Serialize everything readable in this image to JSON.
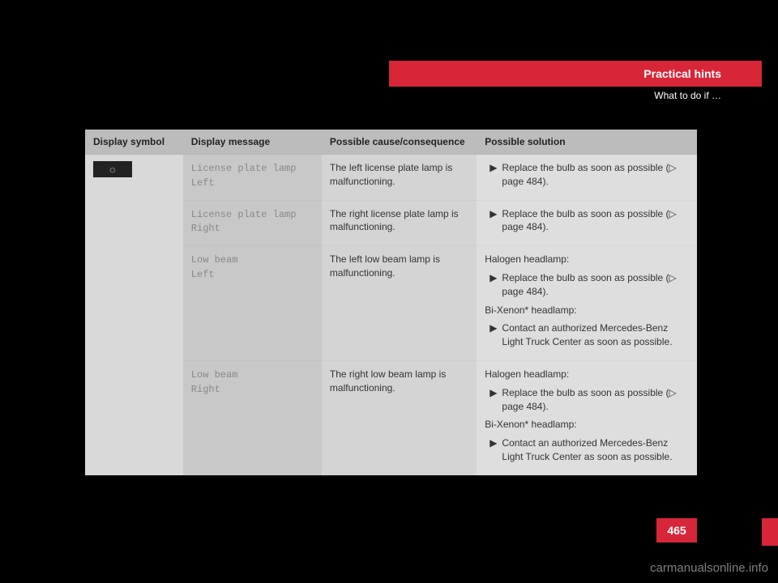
{
  "header": {
    "title": "Practical hints",
    "subtitle": "What to do if …"
  },
  "table": {
    "columns": [
      "Display symbol",
      "Display message",
      "Possible cause/consequence",
      "Possible solution"
    ],
    "symbol_glyph": "☼",
    "rows": [
      {
        "msg_l1": "License plate lamp",
        "msg_l2": "Left",
        "cause": "The left license plate lamp is malfunctioning.",
        "sol": [
          {
            "type": "bullet",
            "text": "Replace the bulb as soon as possible (▷ page 484)."
          }
        ]
      },
      {
        "msg_l1": "License plate lamp",
        "msg_l2": "Right",
        "cause": "The right license plate lamp is malfunctioning.",
        "sol": [
          {
            "type": "bullet",
            "text": "Replace the bulb as soon as possible (▷ page 484)."
          }
        ]
      },
      {
        "msg_l1": "Low beam",
        "msg_l2": "Left",
        "cause": "The left low beam lamp is malfunctioning.",
        "sol": [
          {
            "type": "text",
            "text": "Halogen headlamp:"
          },
          {
            "type": "bullet",
            "text": "Replace the bulb as soon as possible (▷ page 484)."
          },
          {
            "type": "text",
            "text": "Bi-Xenon* headlamp:"
          },
          {
            "type": "bullet",
            "text": "Contact an authorized Mercedes-Benz Light Truck Center as soon as possible."
          }
        ]
      },
      {
        "msg_l1": "Low beam",
        "msg_l2": "Right",
        "cause": "The right low beam lamp is malfunctioning.",
        "sol": [
          {
            "type": "text",
            "text": "Halogen headlamp:"
          },
          {
            "type": "bullet",
            "text": "Replace the bulb as soon as possible (▷ page 484)."
          },
          {
            "type": "text",
            "text": "Bi-Xenon* headlamp:"
          },
          {
            "type": "bullet",
            "text": "Contact an authorized Mercedes-Benz Light Truck Center as soon as possible."
          }
        ]
      }
    ]
  },
  "page_number": "465",
  "watermark": "carmanualsonline.info",
  "colors": {
    "brand_red": "#d72638",
    "header_gray": "#bcbcbc",
    "cell_gray_a": "#d9d9d9",
    "cell_gray_b": "#c8c8c8",
    "cell_gray_c": "#d4d4d4",
    "cell_gray_d": "#dedede"
  }
}
